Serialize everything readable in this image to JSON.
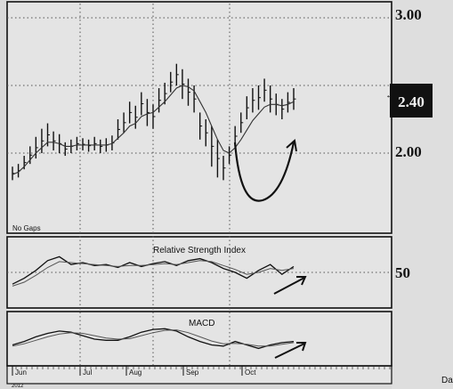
{
  "chart_data": [
    {
      "type": "bar",
      "subtype": "ohlc-price",
      "overlay_label": "No Gaps",
      "last_price_badge": "2.40",
      "y_tick_labels": [
        "3.00",
        "2.00"
      ],
      "ylim": [
        1.72,
        3.02
      ],
      "x_tick_labels": [
        "Jun",
        "Jul",
        "Aug",
        "Sep",
        "Oct"
      ],
      "year_label": "2012",
      "right_label": "Da",
      "grid": true,
      "series": [
        {
          "x": [
            0,
            2,
            4,
            6,
            8,
            10,
            12,
            14,
            16,
            18,
            20,
            22,
            24,
            26,
            28,
            30,
            32,
            34,
            36,
            38,
            40,
            42,
            44,
            46,
            48,
            50,
            52,
            54,
            56,
            58,
            60,
            62,
            64,
            66,
            68,
            70,
            72,
            74,
            76,
            78,
            80,
            82,
            84,
            86,
            88,
            90,
            92,
            94,
            96
          ],
          "high": [
            1.9,
            1.92,
            1.98,
            2.05,
            2.12,
            2.18,
            2.22,
            2.16,
            2.14,
            2.08,
            2.1,
            2.12,
            2.11,
            2.1,
            2.12,
            2.1,
            2.11,
            2.13,
            2.25,
            2.3,
            2.38,
            2.35,
            2.45,
            2.4,
            2.36,
            2.48,
            2.52,
            2.6,
            2.66,
            2.62,
            2.55,
            2.5,
            2.3,
            2.25,
            2.2,
            2.1,
            1.98,
            2.05,
            2.2,
            2.3,
            2.42,
            2.48,
            2.5,
            2.55,
            2.5,
            2.44,
            2.4,
            2.45,
            2.48
          ],
          "low": [
            1.8,
            1.82,
            1.88,
            1.92,
            1.96,
            2.0,
            2.05,
            2.02,
            2.0,
            1.98,
            2.0,
            2.02,
            2.02,
            2.01,
            2.02,
            2.0,
            2.01,
            2.02,
            2.1,
            2.15,
            2.22,
            2.18,
            2.28,
            2.2,
            2.18,
            2.3,
            2.36,
            2.45,
            2.5,
            2.4,
            2.35,
            2.3,
            2.1,
            2.05,
            1.9,
            1.82,
            1.8,
            1.92,
            2.05,
            2.15,
            2.25,
            2.3,
            2.32,
            2.38,
            2.3,
            2.28,
            2.25,
            2.3,
            2.32
          ],
          "ma": [
            1.84,
            1.86,
            1.9,
            1.95,
            2.0,
            2.04,
            2.08,
            2.08,
            2.07,
            2.05,
            2.05,
            2.06,
            2.06,
            2.06,
            2.06,
            2.06,
            2.06,
            2.07,
            2.11,
            2.15,
            2.2,
            2.22,
            2.27,
            2.29,
            2.3,
            2.34,
            2.38,
            2.43,
            2.48,
            2.5,
            2.49,
            2.46,
            2.38,
            2.3,
            2.2,
            2.1,
            2.02,
            2.0,
            2.04,
            2.1,
            2.17,
            2.24,
            2.29,
            2.34,
            2.36,
            2.36,
            2.35,
            2.36,
            2.38
          ]
        }
      ],
      "annotation": "cup-shaped curve and upward arrow drawn by hand"
    },
    {
      "type": "line",
      "title": "Relative Strength Index",
      "y_tick_labels": [
        "50"
      ],
      "ylim": [
        20,
        80
      ],
      "series": [
        {
          "x": [
            0,
            4,
            8,
            12,
            16,
            20,
            24,
            28,
            32,
            36,
            40,
            44,
            48,
            52,
            56,
            60,
            64,
            68,
            72,
            76,
            80,
            84,
            88,
            92,
            96
          ],
          "values": [
            38,
            44,
            52,
            62,
            66,
            58,
            60,
            57,
            58,
            55,
            60,
            56,
            59,
            61,
            57,
            62,
            64,
            60,
            54,
            50,
            44,
            52,
            58,
            48,
            56
          ]
        },
        {
          "x": [
            0,
            4,
            8,
            12,
            16,
            20,
            24,
            28,
            32,
            36,
            40,
            44,
            48,
            52,
            56,
            60,
            64,
            68,
            72,
            76,
            80,
            84,
            88,
            92,
            96
          ],
          "values": [
            36,
            40,
            47,
            55,
            61,
            60,
            59,
            58,
            57,
            56,
            57,
            57,
            58,
            59,
            58,
            60,
            62,
            61,
            57,
            53,
            48,
            50,
            54,
            52,
            54
          ]
        }
      ],
      "annotation": "upward arrow drawn by hand"
    },
    {
      "type": "line",
      "title": "MACD",
      "ylim": [
        -1,
        1
      ],
      "series": [
        {
          "x": [
            0,
            4,
            8,
            12,
            16,
            20,
            24,
            28,
            32,
            36,
            40,
            44,
            48,
            52,
            56,
            60,
            64,
            68,
            72,
            76,
            80,
            84,
            88,
            92,
            96
          ],
          "values": [
            -0.25,
            -0.1,
            0.1,
            0.25,
            0.35,
            0.3,
            0.15,
            0.0,
            -0.05,
            -0.05,
            0.1,
            0.3,
            0.42,
            0.45,
            0.35,
            0.1,
            -0.1,
            -0.25,
            -0.3,
            -0.1,
            -0.25,
            -0.4,
            -0.25,
            -0.15,
            -0.1
          ]
        },
        {
          "x": [
            0,
            4,
            8,
            12,
            16,
            20,
            24,
            28,
            32,
            36,
            40,
            44,
            48,
            52,
            56,
            60,
            64,
            68,
            72,
            76,
            80,
            84,
            88,
            92,
            96
          ],
          "values": [
            -0.3,
            -0.2,
            -0.05,
            0.1,
            0.22,
            0.28,
            0.25,
            0.15,
            0.05,
            0.0,
            0.02,
            0.15,
            0.28,
            0.38,
            0.4,
            0.28,
            0.1,
            -0.08,
            -0.2,
            -0.18,
            -0.22,
            -0.3,
            -0.3,
            -0.22,
            -0.15
          ]
        }
      ],
      "annotation": "upward arrow drawn by hand"
    }
  ]
}
